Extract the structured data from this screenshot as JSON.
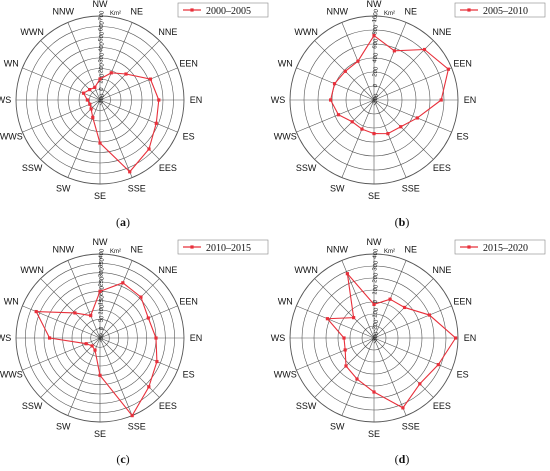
{
  "chart_data": [
    {
      "type": "radar",
      "panel_label": "a",
      "legend": "2000–2005",
      "unit": "Km²",
      "categories": [
        "NW",
        "NE",
        "NNE",
        "EEN",
        "EN",
        "ES",
        "EES",
        "SSE",
        "SE",
        "SW",
        "SSW",
        "WWS",
        "WS",
        "WN",
        "WWN",
        "NNW"
      ],
      "rlim": [
        -100,
        700
      ],
      "ticks": [
        -100,
        0,
        100,
        200,
        300,
        400,
        500,
        600,
        700
      ],
      "tick_labels": [
        "-100",
        "0",
        "100",
        "200",
        "300",
        "400",
        "500",
        "600",
        "700"
      ],
      "values": [
        100,
        180,
        250,
        420,
        460,
        480,
        560,
        640,
        310,
        80,
        20,
        5,
        20,
        70,
        40,
        30
      ]
    },
    {
      "type": "radar",
      "panel_label": "b",
      "legend": "2005–2010",
      "unit": "Km²",
      "categories": [
        "NW",
        "NE",
        "NNE",
        "EEN",
        "EN",
        "ES",
        "EES",
        "SSE",
        "SE",
        "SW",
        "SSW",
        "WWS",
        "WS",
        "WN",
        "WWN",
        "NNW"
      ],
      "rlim": [
        -200,
        1000
      ],
      "ticks": [
        -200,
        0,
        200,
        400,
        600,
        800,
        1000
      ],
      "tick_labels": [
        "-200",
        "0",
        "200",
        "400",
        "600",
        "800",
        "1000"
      ],
      "values": [
        720,
        560,
        820,
        950,
        760,
        470,
        340,
        320,
        280,
        250,
        240,
        350,
        420,
        410,
        380,
        400
      ]
    },
    {
      "type": "radar",
      "panel_label": "c",
      "legend": "2010–2015",
      "unit": "Km²",
      "categories": [
        "NW",
        "NE",
        "NNE",
        "EEN",
        "EN",
        "ES",
        "EES",
        "SSE",
        "SE",
        "SW",
        "SSW",
        "WWS",
        "WS",
        "WN",
        "WWN",
        "NNW"
      ],
      "rlim": [
        -50,
        400
      ],
      "ticks": [
        -50,
        0,
        50,
        100,
        150,
        200,
        250,
        300,
        350,
        400
      ],
      "tick_labels": [
        "-50",
        "0",
        "50",
        "100",
        "150",
        "200",
        "250",
        "300",
        "350",
        "400"
      ],
      "values": [
        200,
        270,
        260,
        230,
        250,
        280,
        320,
        400,
        150,
        20,
        10,
        30,
        220,
        320,
        140,
        80
      ]
    },
    {
      "type": "radar",
      "panel_label": "d",
      "legend": "2015–2020",
      "unit": "Km²",
      "categories": [
        "NW",
        "NE",
        "NNE",
        "EEN",
        "EN",
        "ES",
        "EES",
        "SSE",
        "SE",
        "SW",
        "SSW",
        "WWS",
        "WS",
        "WN",
        "WWN",
        "NNW"
      ],
      "rlim": [
        -300,
        400
      ],
      "ticks": [
        -300,
        -200,
        -100,
        0,
        100,
        200,
        300,
        400
      ],
      "tick_labels": [
        "-300",
        "-200",
        "-100",
        "0",
        "100",
        "200",
        "300",
        "400"
      ],
      "values": [
        -20,
        50,
        60,
        200,
        380,
        280,
        240,
        330,
        150,
        70,
        30,
        -40,
        -50,
        120,
        -60,
        280
      ]
    }
  ],
  "colors": {
    "series": "#e8303b",
    "grid": "#555555",
    "axis": "#777777"
  }
}
